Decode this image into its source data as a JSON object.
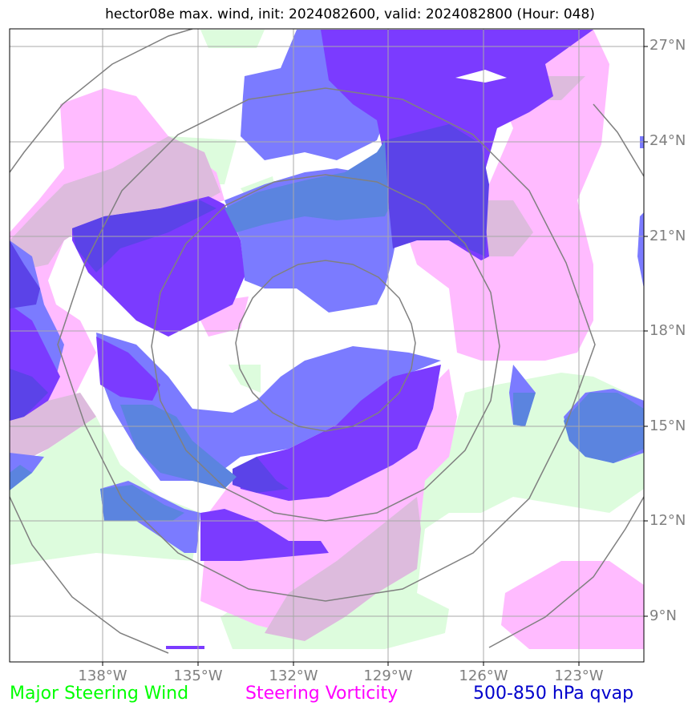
{
  "title": "hector08e max. wind, init: 2024082600, valid: 2024082800 (Hour: 048)",
  "lat_labels": [
    "27°N",
    "24°N",
    "21°N",
    "18°N",
    "15°N",
    "12°N",
    "9°N"
  ],
  "lon_labels": [
    "138°W",
    "135°W",
    "132°W",
    "129°W",
    "126°W",
    "123°W"
  ],
  "legend": {
    "wind": "Major Steering Wind",
    "vorticity": "Steering Vorticity",
    "qvap": "500-850 hPa qvap"
  },
  "colors": {
    "wind": "#00ff00",
    "vorticity": "#ff00ff",
    "qvap": "#0000cc",
    "wind_fill": "#ddfcdd",
    "vort_fill": "#ffbbff",
    "vort_wind_overlap": "#ddbbdd",
    "qvap_light": "#7b7bff",
    "qvap_dark": "#7b3bff",
    "qvap_mix": "#5b43e8",
    "qvap_wind": "#5b84df"
  }
}
